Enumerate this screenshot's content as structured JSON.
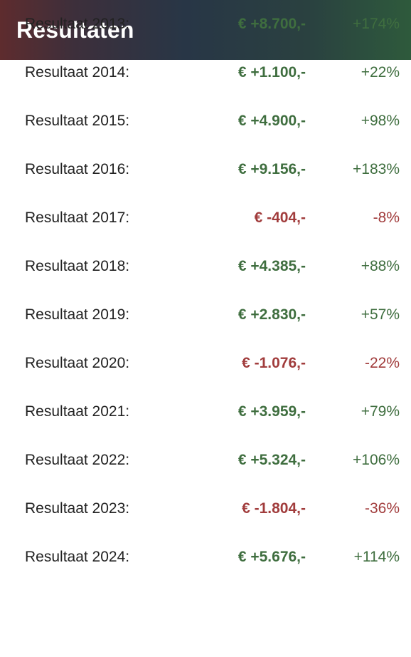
{
  "header": {
    "title": "Resultaten"
  },
  "colors": {
    "positive": "#3f6e3f",
    "negative": "#a13c3c"
  },
  "rows": [
    {
      "label": "Resultaat 2013:",
      "amount": "€ +8.700,-",
      "percent": "+174%",
      "positive": true
    },
    {
      "label": "Resultaat 2014:",
      "amount": "€ +1.100,-",
      "percent": "+22%",
      "positive": true
    },
    {
      "label": "Resultaat 2015:",
      "amount": "€ +4.900,-",
      "percent": "+98%",
      "positive": true
    },
    {
      "label": "Resultaat 2016:",
      "amount": "€ +9.156,-",
      "percent": "+183%",
      "positive": true
    },
    {
      "label": "Resultaat 2017:",
      "amount": "€ -404,-",
      "percent": "-8%",
      "positive": false
    },
    {
      "label": "Resultaat 2018:",
      "amount": "€ +4.385,-",
      "percent": "+88%",
      "positive": true
    },
    {
      "label": "Resultaat 2019:",
      "amount": "€ +2.830,-",
      "percent": "+57%",
      "positive": true
    },
    {
      "label": "Resultaat 2020:",
      "amount": "€ -1.076,-",
      "percent": "-22%",
      "positive": false
    },
    {
      "label": "Resultaat 2021:",
      "amount": "€ +3.959,-",
      "percent": "+79%",
      "positive": true
    },
    {
      "label": "Resultaat 2022:",
      "amount": "€ +5.324,-",
      "percent": "+106%",
      "positive": true
    },
    {
      "label": "Resultaat 2023:",
      "amount": "€ -1.804,-",
      "percent": "-36%",
      "positive": false
    },
    {
      "label": "Resultaat 2024:",
      "amount": "€ +5.676,-",
      "percent": "+114%",
      "positive": true
    }
  ]
}
